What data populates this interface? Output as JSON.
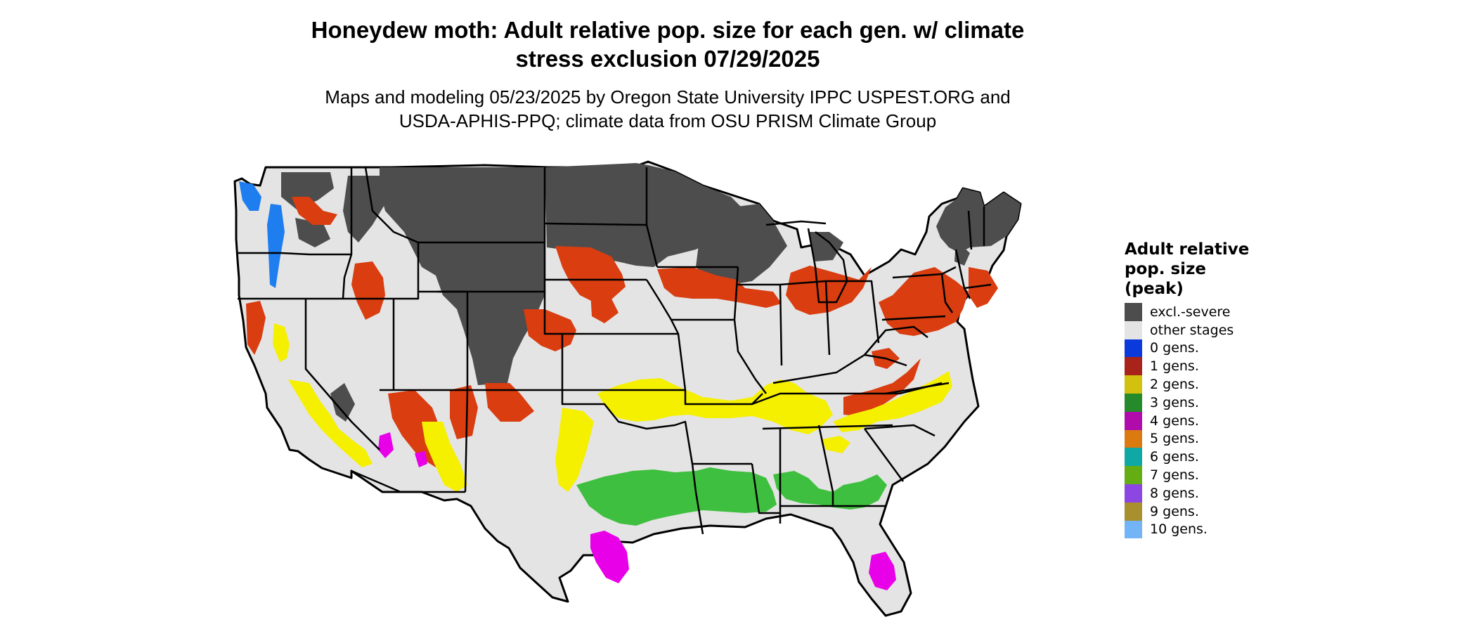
{
  "header": {
    "title_line1": "Honeydew moth: Adult relative pop. size for each gen. w/ climate",
    "title_line2": "stress exclusion 07/29/2025",
    "subtitle_line1": "Maps and modeling 05/23/2025 by Oregon State University IPPC USPEST.ORG and",
    "subtitle_line2": "USDA-APHIS-PPQ; climate data from OSU PRISM Climate Group"
  },
  "map": {
    "base_color": "#e4e4e4",
    "border_color": "#000000"
  },
  "legend": {
    "title_line1": "Adult relative",
    "title_line2": "pop. size",
    "title_line3": "(peak)",
    "items": [
      {
        "label": "excl.-severe",
        "color": "#4d4d4d"
      },
      {
        "label": "other stages",
        "color": "#e4e4e4"
      },
      {
        "label": "0 gens.",
        "color": "#0a3adb"
      },
      {
        "label": "1 gens.",
        "color": "#a8231a"
      },
      {
        "label": "2 gens.",
        "color": "#d2c20f"
      },
      {
        "label": "3 gens.",
        "color": "#258a2a"
      },
      {
        "label": "4 gens.",
        "color": "#b00cab"
      },
      {
        "label": "5 gens.",
        "color": "#dc7a12"
      },
      {
        "label": "6 gens.",
        "color": "#0fa8a4"
      },
      {
        "label": "7 gens.",
        "color": "#64ae13"
      },
      {
        "label": "8 gens.",
        "color": "#8c47e3"
      },
      {
        "label": "9 gens.",
        "color": "#a8902e"
      },
      {
        "label": "10 gens.",
        "color": "#72b4f5"
      }
    ]
  }
}
